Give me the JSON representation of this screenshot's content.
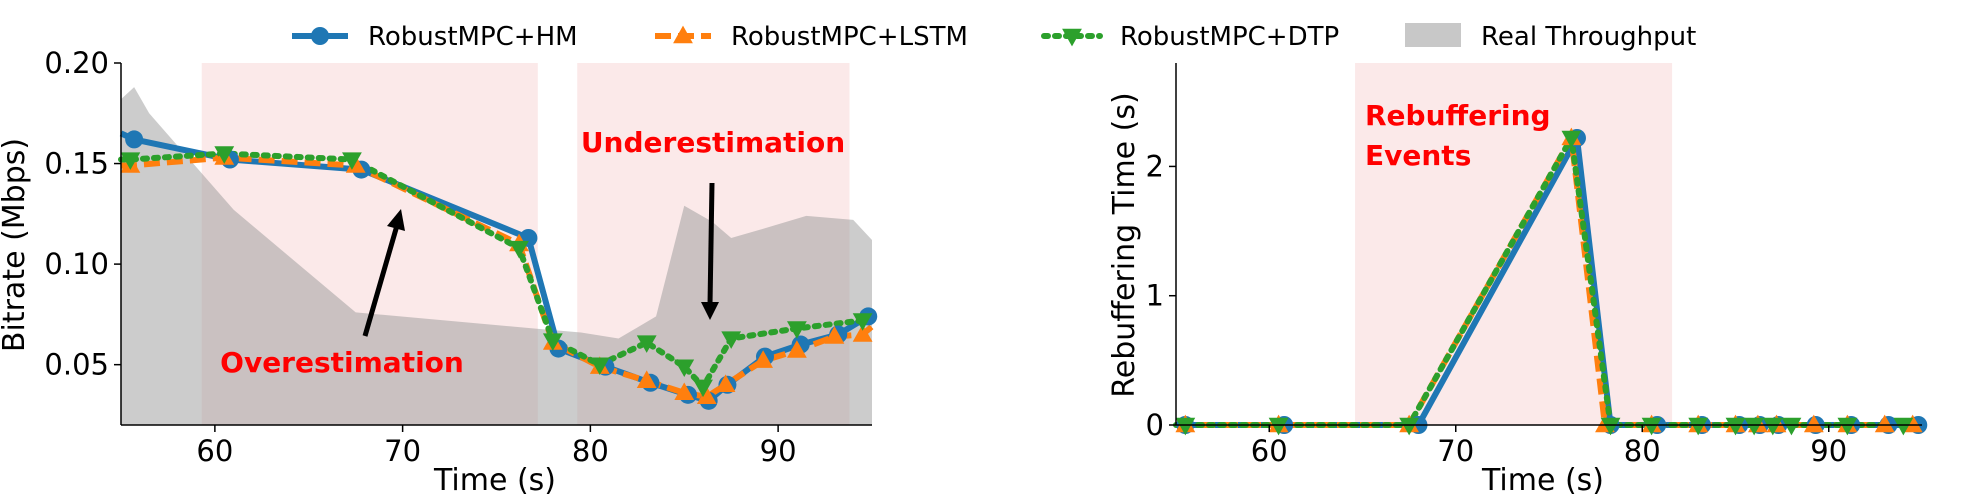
{
  "legend": [
    {
      "label": "RobustMPC+HM",
      "color": "#1f77b4",
      "marker": "circle",
      "dash": "solid"
    },
    {
      "label": "RobustMPC+LSTM",
      "color": "#ff7f0e",
      "marker": "triangle-up",
      "dash": "dashed"
    },
    {
      "label": "RobustMPC+DTP",
      "color": "#2ca02c",
      "marker": "triangle-down",
      "dash": "dotted"
    },
    {
      "label": "Real Throughput",
      "color": "#c8c8c8",
      "marker": "patch",
      "dash": "none"
    }
  ],
  "chart_data": [
    {
      "type": "line",
      "xlabel": "Time (s)",
      "ylabel": "Bitrate (Mbps)",
      "xlim": [
        55,
        95
      ],
      "ylim": [
        0.02,
        0.2
      ],
      "xticks": [
        "60",
        "70",
        "80",
        "90"
      ],
      "yticks": [
        "0.05",
        "0.10",
        "0.15",
        "0.20"
      ],
      "highlight_regions": [
        [
          59.3,
          77.2
        ],
        [
          79.3,
          93.8
        ]
      ],
      "throughput_area": {
        "name": "Real Throughput",
        "x": [
          55,
          55.7,
          56.5,
          61,
          67.5,
          77,
          79.5,
          81.5,
          83.5,
          85,
          86.5,
          87.5,
          89,
          91.5,
          94,
          95
        ],
        "y": [
          0.182,
          0.188,
          0.175,
          0.127,
          0.076,
          0.068,
          0.066,
          0.063,
          0.074,
          0.129,
          0.121,
          0.113,
          0.117,
          0.124,
          0.122,
          0.112
        ]
      },
      "series": [
        {
          "name": "RobustMPC+HM",
          "x": [
            55,
            55.7,
            60.8,
            67.8,
            76.7,
            78.3,
            80.8,
            83.2,
            85.2,
            86.3,
            87.3,
            89.3,
            91.2,
            93.2,
            94.8,
            95
          ],
          "y": [
            0.165,
            0.162,
            0.152,
            0.147,
            0.113,
            0.058,
            0.049,
            0.041,
            0.035,
            0.032,
            0.04,
            0.054,
            0.06,
            0.065,
            0.074,
            0.075
          ]
        },
        {
          "name": "RobustMPC+LSTM",
          "x": [
            55,
            55.5,
            60.5,
            67.5,
            76.2,
            78,
            80.5,
            83,
            85,
            86.2,
            87.2,
            89.2,
            91,
            93,
            94.5,
            95
          ],
          "y": [
            0.149,
            0.149,
            0.153,
            0.149,
            0.11,
            0.061,
            0.049,
            0.042,
            0.036,
            0.034,
            0.04,
            0.052,
            0.057,
            0.064,
            0.065,
            0.069
          ]
        },
        {
          "name": "RobustMPC+DTP",
          "x": [
            55,
            55.5,
            60.5,
            67.3,
            76.2,
            78,
            80.5,
            83,
            85,
            86,
            87.5,
            91,
            94.5,
            95
          ],
          "y": [
            0.152,
            0.152,
            0.155,
            0.152,
            0.108,
            0.062,
            0.05,
            0.061,
            0.049,
            0.039,
            0.063,
            0.068,
            0.072,
            0.073
          ]
        }
      ],
      "annotations": [
        {
          "text": "Overestimation",
          "color": "#ff0000"
        },
        {
          "text": "Underestimation",
          "color": "#ff0000"
        }
      ]
    },
    {
      "type": "line",
      "xlabel": "Time (s)",
      "ylabel": "Rebuffering Time (s)",
      "xlim": [
        55,
        95
      ],
      "ylim": [
        0,
        2.8
      ],
      "xticks": [
        "60",
        "70",
        "80",
        "90"
      ],
      "yticks": [
        "0",
        "1",
        "2"
      ],
      "highlight_regions": [
        [
          64.6,
          81.6
        ]
      ],
      "series": [
        {
          "name": "RobustMPC+HM",
          "x": [
            55,
            55.5,
            60.8,
            68,
            76.5,
            78.3,
            80.8,
            83.2,
            85.2,
            86.3,
            87.3,
            89.3,
            91.2,
            93.2,
            94.8,
            95
          ],
          "y": [
            0,
            0,
            0,
            0,
            2.22,
            0,
            0,
            0,
            0,
            0,
            0,
            0,
            0,
            0,
            0,
            0
          ]
        },
        {
          "name": "RobustMPC+LSTM",
          "x": [
            55,
            55.5,
            60.5,
            67.5,
            76.2,
            78,
            80.5,
            83,
            85,
            86.2,
            87.2,
            89.2,
            91,
            93,
            94.5,
            95
          ],
          "y": [
            0,
            0,
            0,
            0,
            2.22,
            0,
            0,
            0,
            0,
            0,
            0,
            0,
            0,
            0,
            0,
            0
          ]
        },
        {
          "name": "RobustMPC+DTP",
          "x": [
            55,
            55.5,
            60.5,
            67.5,
            76.2,
            78.3,
            80.5,
            83,
            85,
            86,
            87,
            88,
            91,
            94,
            95
          ],
          "y": [
            0,
            0,
            0,
            0,
            2.22,
            0,
            0,
            0,
            0,
            0,
            0,
            0,
            0,
            0,
            0
          ]
        }
      ],
      "annotations": [
        {
          "text": "Rebuffering",
          "color": "#ff0000"
        },
        {
          "text": "Events",
          "color": "#ff0000"
        }
      ]
    }
  ]
}
